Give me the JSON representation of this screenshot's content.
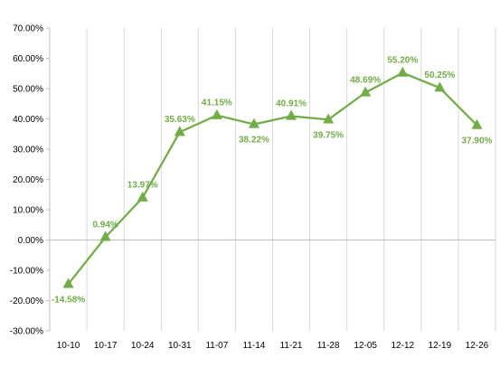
{
  "colors": {
    "series": "#70AD47",
    "label": "#70AD47",
    "grid": "#D9D9D9",
    "axis": "#BFBFBF",
    "tick_text": "#000000"
  },
  "chart_data": {
    "type": "line",
    "x": [
      "10-10",
      "10-17",
      "10-24",
      "10-31",
      "11-07",
      "11-14",
      "11-21",
      "11-28",
      "12-05",
      "12-12",
      "12-19",
      "12-26"
    ],
    "series": [
      {
        "values": [
          -14.58,
          0.94,
          13.97,
          35.63,
          41.15,
          38.22,
          40.91,
          39.75,
          48.69,
          55.2,
          50.25,
          37.9
        ],
        "labels": [
          "-14.58%",
          "0.94%",
          "13.97%",
          "35.63%",
          "41.15%",
          "38.22%",
          "40.91%",
          "39.75%",
          "48.69%",
          "55.20%",
          "50.25%",
          "37.90%"
        ],
        "label_side": [
          "below",
          "above",
          "above",
          "above",
          "above",
          "below",
          "above",
          "below",
          "above",
          "above",
          "above",
          "below"
        ],
        "marker": "triangle"
      }
    ],
    "ylim": [
      -30,
      70
    ],
    "yticks": [
      -30,
      -20,
      -10,
      0,
      10,
      20,
      30,
      40,
      50,
      60,
      70
    ],
    "ytick_labels": [
      "-30.00%",
      "-20.00%",
      "-10.00%",
      "0.00%",
      "10.00%",
      "20.00%",
      "30.00%",
      "40.00%",
      "50.00%",
      "60.00%",
      "70.00%"
    ],
    "grid": "vertical",
    "legend": "none",
    "title": "",
    "xlabel": "",
    "ylabel": ""
  }
}
